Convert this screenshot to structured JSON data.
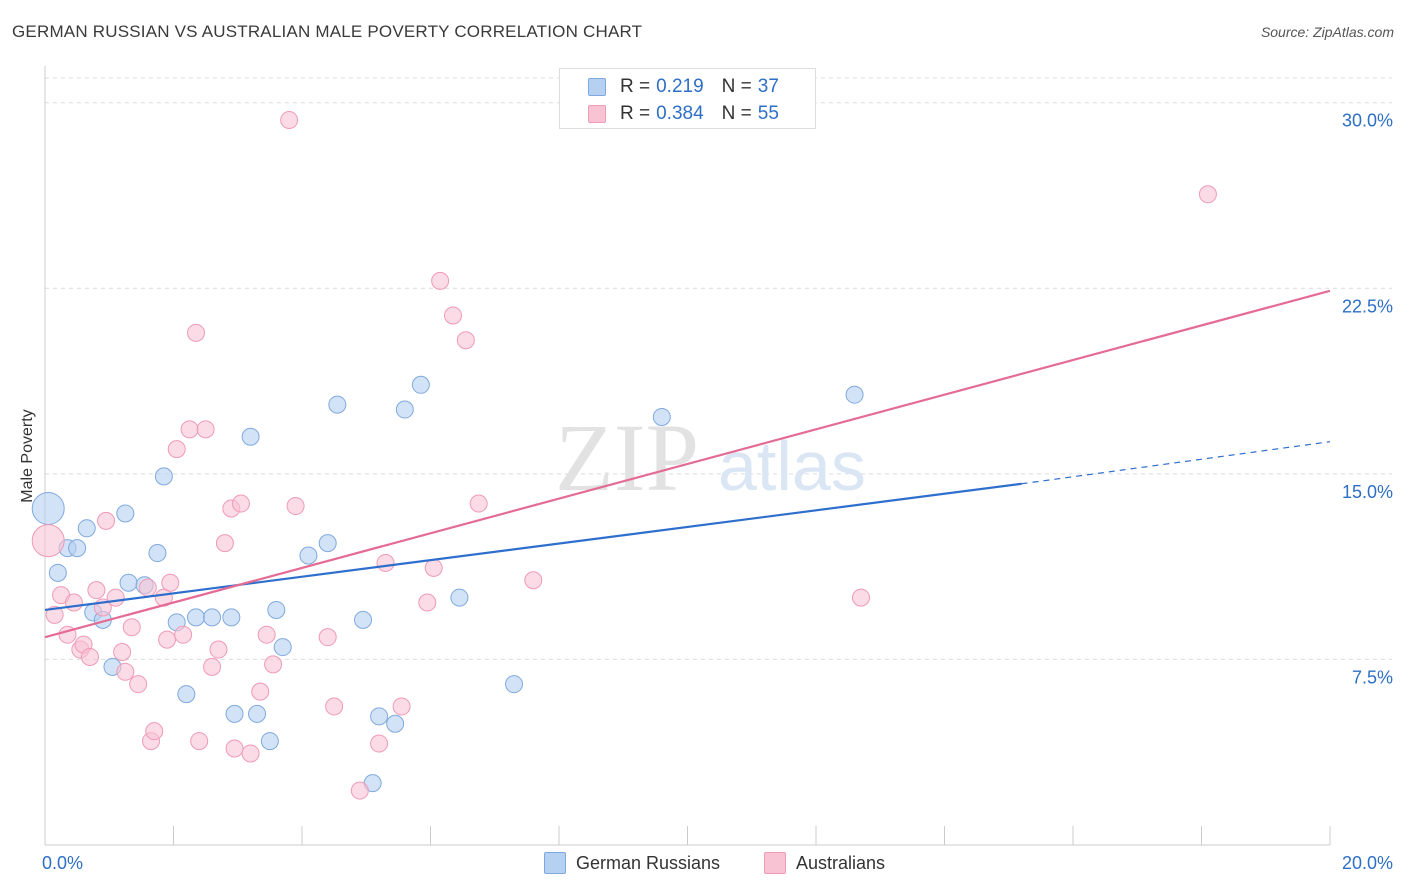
{
  "title": "GERMAN RUSSIAN VS AUSTRALIAN MALE POVERTY CORRELATION CHART",
  "source": "Source: ZipAtlas.com",
  "watermark": {
    "zip": "ZIP",
    "atlas": "atlas"
  },
  "legend_top": {
    "rows": [
      {
        "r_label": "R =",
        "r_value": "0.219",
        "n_label": "N =",
        "n_value": "37",
        "color": "#a8c8ef"
      },
      {
        "r_label": "R =",
        "r_value": "0.384",
        "n_label": "N =",
        "n_value": "55",
        "color": "#f6b8cb"
      }
    ]
  },
  "legend_bottom": {
    "items": [
      {
        "label": "German Russians",
        "color": "#a8c8ef"
      },
      {
        "label": "Australians",
        "color": "#f6b8cb"
      }
    ]
  },
  "colors": {
    "blue_fill": "#b6d0f2",
    "blue_stroke": "#7fa9de",
    "blue_line": "#2e6fcd",
    "pink_fill": "#f8c3d3",
    "pink_stroke": "#ef9ab6",
    "pink_line": "#e46c94",
    "tick_label": "#2e6fc6",
    "grid": "#dcdcdc"
  },
  "chart_data": {
    "type": "scatter",
    "title": "GERMAN RUSSIAN VS AUSTRALIAN MALE POVERTY CORRELATION CHART",
    "xlabel": "",
    "ylabel": "Male Poverty",
    "xlim": [
      0,
      20
    ],
    "ylim": [
      0,
      31
    ],
    "x_tick_labels": [
      "0.0%",
      "20.0%"
    ],
    "y_ticks": [
      7.5,
      15.0,
      22.5,
      30.0
    ],
    "y_tick_labels": [
      "7.5%",
      "15.0%",
      "22.5%",
      "30.0%"
    ],
    "grid": true,
    "legend": "top-center",
    "series": [
      {
        "name": "German Russians",
        "r": 0.219,
        "n": 37,
        "trend": {
          "x0": 0,
          "y0": 9.5,
          "x1": 15.2,
          "y1": 14.6,
          "dash_to_x": 20,
          "dash_to_y": 16.3
        },
        "points": [
          {
            "x": 0.05,
            "y": 13.6,
            "big": true
          },
          {
            "x": 0.2,
            "y": 11.0
          },
          {
            "x": 0.35,
            "y": 12.0
          },
          {
            "x": 0.5,
            "y": 12.0
          },
          {
            "x": 0.65,
            "y": 12.8
          },
          {
            "x": 0.75,
            "y": 9.4
          },
          {
            "x": 0.9,
            "y": 9.1
          },
          {
            "x": 1.05,
            "y": 7.2
          },
          {
            "x": 1.25,
            "y": 13.4
          },
          {
            "x": 1.3,
            "y": 10.6
          },
          {
            "x": 1.55,
            "y": 10.5
          },
          {
            "x": 1.75,
            "y": 11.8
          },
          {
            "x": 1.85,
            "y": 14.9
          },
          {
            "x": 2.05,
            "y": 9.0
          },
          {
            "x": 2.2,
            "y": 6.1
          },
          {
            "x": 2.35,
            "y": 9.2
          },
          {
            "x": 2.6,
            "y": 9.2
          },
          {
            "x": 2.9,
            "y": 9.2
          },
          {
            "x": 2.95,
            "y": 5.3
          },
          {
            "x": 3.2,
            "y": 16.5
          },
          {
            "x": 3.3,
            "y": 5.3
          },
          {
            "x": 3.5,
            "y": 4.2
          },
          {
            "x": 3.6,
            "y": 9.5
          },
          {
            "x": 3.7,
            "y": 8.0
          },
          {
            "x": 4.1,
            "y": 11.7
          },
          {
            "x": 4.4,
            "y": 12.2
          },
          {
            "x": 4.55,
            "y": 17.8
          },
          {
            "x": 4.95,
            "y": 9.1
          },
          {
            "x": 5.2,
            "y": 5.2
          },
          {
            "x": 5.1,
            "y": 2.5
          },
          {
            "x": 5.45,
            "y": 4.9
          },
          {
            "x": 5.6,
            "y": 17.6
          },
          {
            "x": 5.85,
            "y": 18.6
          },
          {
            "x": 6.45,
            "y": 10.0
          },
          {
            "x": 7.3,
            "y": 6.5
          },
          {
            "x": 9.6,
            "y": 17.3
          },
          {
            "x": 12.6,
            "y": 18.2
          }
        ]
      },
      {
        "name": "Australians",
        "r": 0.384,
        "n": 55,
        "trend": {
          "x0": 0,
          "y0": 8.4,
          "x1": 20,
          "y1": 22.4
        },
        "points": [
          {
            "x": 0.05,
            "y": 12.3,
            "big": true
          },
          {
            "x": 0.15,
            "y": 9.3
          },
          {
            "x": 0.25,
            "y": 10.1
          },
          {
            "x": 0.35,
            "y": 8.5
          },
          {
            "x": 0.45,
            "y": 9.8
          },
          {
            "x": 0.55,
            "y": 7.9
          },
          {
            "x": 0.6,
            "y": 8.1
          },
          {
            "x": 0.7,
            "y": 7.6
          },
          {
            "x": 0.8,
            "y": 10.3
          },
          {
            "x": 0.9,
            "y": 9.6
          },
          {
            "x": 0.95,
            "y": 13.1
          },
          {
            "x": 1.1,
            "y": 10.0
          },
          {
            "x": 1.2,
            "y": 7.8
          },
          {
            "x": 1.25,
            "y": 7.0
          },
          {
            "x": 1.35,
            "y": 8.8
          },
          {
            "x": 1.45,
            "y": 6.5
          },
          {
            "x": 1.6,
            "y": 10.4
          },
          {
            "x": 1.65,
            "y": 4.2
          },
          {
            "x": 1.7,
            "y": 4.6
          },
          {
            "x": 1.85,
            "y": 10.0
          },
          {
            "x": 1.9,
            "y": 8.3
          },
          {
            "x": 1.95,
            "y": 10.6
          },
          {
            "x": 2.05,
            "y": 16.0
          },
          {
            "x": 2.15,
            "y": 8.5
          },
          {
            "x": 2.25,
            "y": 16.8
          },
          {
            "x": 2.35,
            "y": 20.7
          },
          {
            "x": 2.4,
            "y": 4.2
          },
          {
            "x": 2.5,
            "y": 16.8
          },
          {
            "x": 2.6,
            "y": 7.2
          },
          {
            "x": 2.7,
            "y": 7.9
          },
          {
            "x": 2.8,
            "y": 12.2
          },
          {
            "x": 2.9,
            "y": 13.6
          },
          {
            "x": 2.95,
            "y": 3.9
          },
          {
            "x": 3.05,
            "y": 13.8
          },
          {
            "x": 3.2,
            "y": 3.7
          },
          {
            "x": 3.35,
            "y": 6.2
          },
          {
            "x": 3.45,
            "y": 8.5
          },
          {
            "x": 3.55,
            "y": 7.3
          },
          {
            "x": 3.8,
            "y": 29.3
          },
          {
            "x": 3.9,
            "y": 13.7
          },
          {
            "x": 4.4,
            "y": 8.4
          },
          {
            "x": 4.5,
            "y": 5.6
          },
          {
            "x": 4.9,
            "y": 2.2
          },
          {
            "x": 5.2,
            "y": 4.1
          },
          {
            "x": 5.3,
            "y": 11.4
          },
          {
            "x": 5.55,
            "y": 5.6
          },
          {
            "x": 5.95,
            "y": 9.8
          },
          {
            "x": 6.05,
            "y": 11.2
          },
          {
            "x": 6.15,
            "y": 22.8
          },
          {
            "x": 6.35,
            "y": 21.4
          },
          {
            "x": 6.55,
            "y": 20.4
          },
          {
            "x": 6.75,
            "y": 13.8
          },
          {
            "x": 7.6,
            "y": 10.7
          },
          {
            "x": 12.7,
            "y": 10.0
          },
          {
            "x": 18.1,
            "y": 26.3
          }
        ]
      }
    ]
  }
}
